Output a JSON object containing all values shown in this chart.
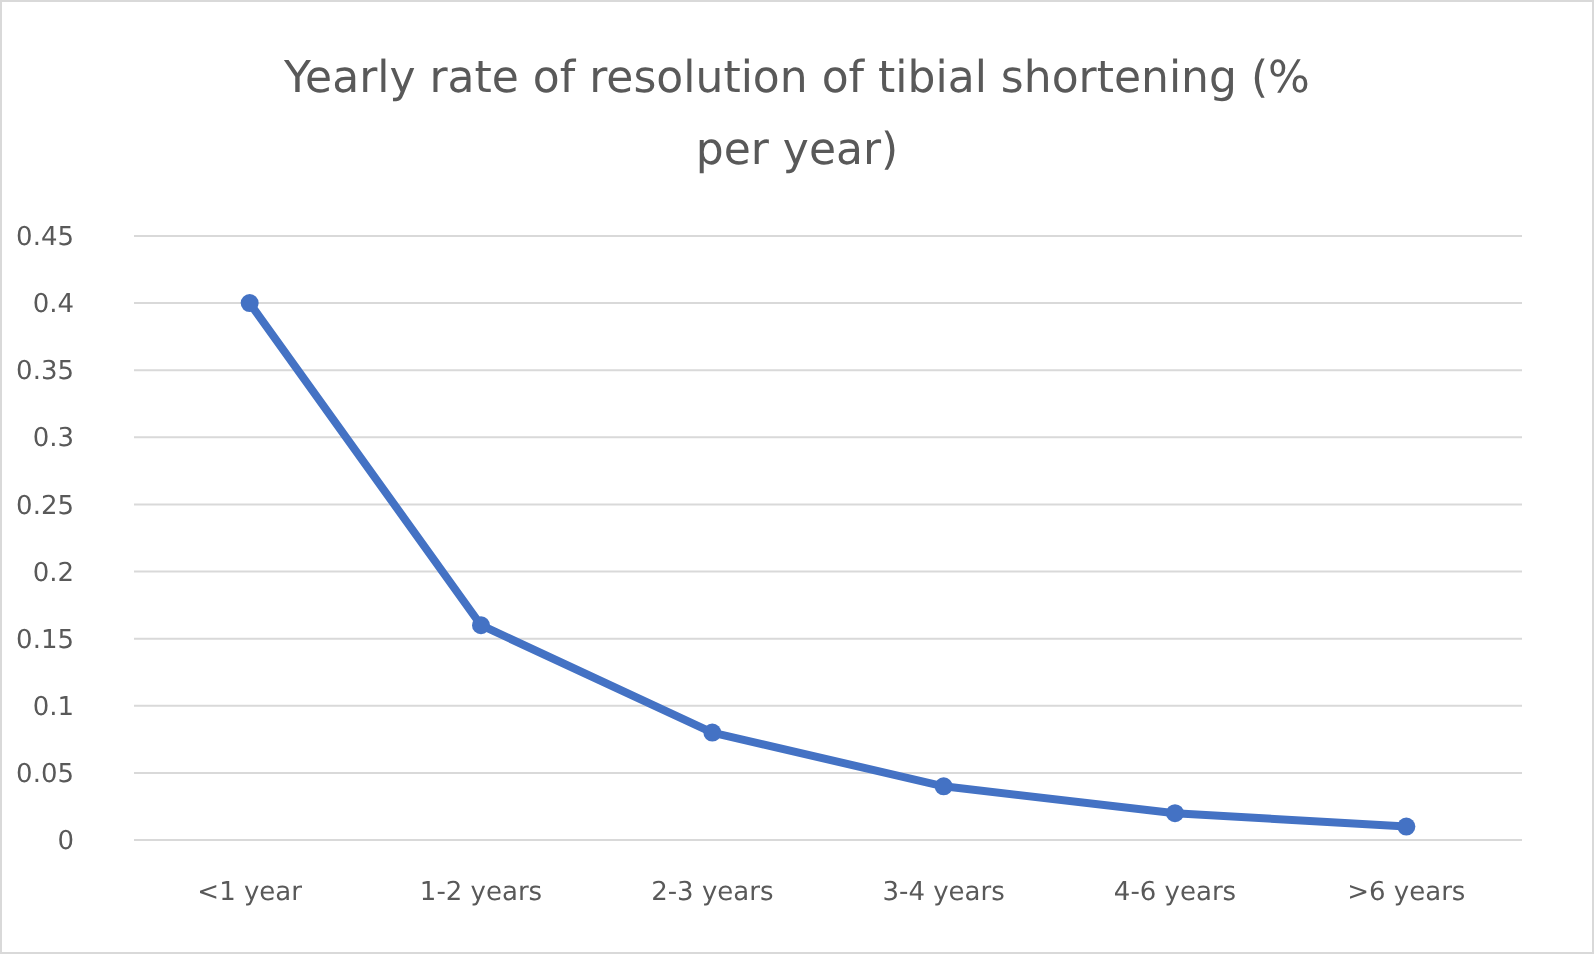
{
  "chart_data": {
    "type": "line",
    "title": "Yearly rate of resolution of tibial shortening (% per year)",
    "categories": [
      "<1 year",
      "1-2 years",
      "2-3 years",
      "3-4 years",
      "4-6 years",
      ">6 years"
    ],
    "series": [
      {
        "color": "#4472c4",
        "values": [
          0.4,
          0.16,
          0.08,
          0.04,
          0.02,
          0.01
        ]
      }
    ],
    "ylim": [
      0,
      0.45
    ],
    "yticks": [
      0,
      0.05,
      0.1,
      0.15,
      0.2,
      0.25,
      0.3,
      0.35,
      0.4,
      0.45
    ],
    "grid": "y",
    "marker": "circle",
    "line_style": "solid"
  }
}
